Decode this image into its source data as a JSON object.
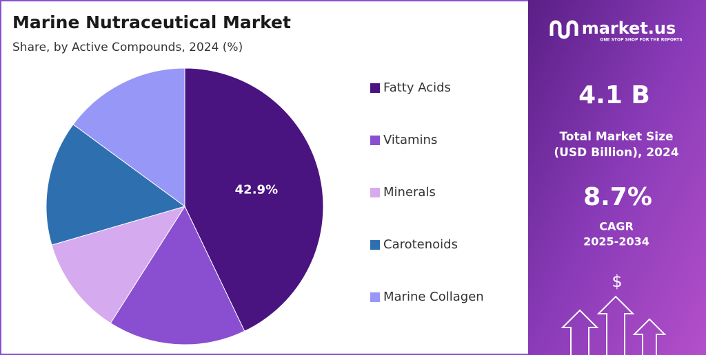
{
  "chart_data": {
    "type": "pie",
    "title": "Marine Nutraceutical Market",
    "subtitle": "Share, by Active Compounds, 2024 (%)",
    "categories": [
      "Fatty Acids",
      "Vitamins",
      "Minerals",
      "Carotenoids",
      "Marine Collagen"
    ],
    "values": [
      42.9,
      16.1,
      11.5,
      14.6,
      14.9
    ],
    "value_labels": [
      "42.9%",
      null,
      null,
      null,
      null
    ],
    "colors": [
      "#4a1480",
      "#8a4fd0",
      "#d6aaee",
      "#2e6fb0",
      "#9797f8"
    ],
    "legend": "right"
  },
  "sidebar": {
    "brand": "market.us",
    "tagline": "ONE STOP SHOP FOR THE REPORTS",
    "market_size": "4.1 B",
    "market_size_label_1": "Total Market Size",
    "market_size_label_2": "(USD Billion), 2024",
    "cagr": "8.7%",
    "cagr_label_1": "CAGR",
    "cagr_label_2": "2025-2034",
    "currency": "$"
  }
}
